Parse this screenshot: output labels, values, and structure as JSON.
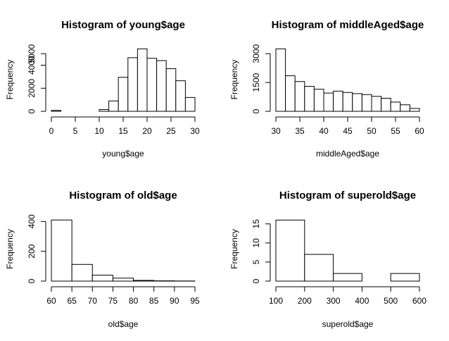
{
  "chart_data": [
    {
      "type": "histogram",
      "title": "Histogram of young$age",
      "xlabel": "young$age",
      "ylabel": "Frequency",
      "xticks": [
        0,
        5,
        10,
        15,
        20,
        25,
        30
      ],
      "yticks": [
        0,
        2000,
        4000,
        5000
      ],
      "xlim": [
        0,
        30
      ],
      "ylim": [
        0,
        5500
      ],
      "bins": [
        {
          "x0": 0,
          "x1": 2,
          "count": 80
        },
        {
          "x0": 2,
          "x1": 4,
          "count": 0
        },
        {
          "x0": 4,
          "x1": 6,
          "count": 0
        },
        {
          "x0": 6,
          "x1": 8,
          "count": 0
        },
        {
          "x0": 8,
          "x1": 10,
          "count": 0
        },
        {
          "x0": 10,
          "x1": 12,
          "count": 150
        },
        {
          "x0": 12,
          "x1": 14,
          "count": 900
        },
        {
          "x0": 14,
          "x1": 16,
          "count": 2950
        },
        {
          "x0": 16,
          "x1": 18,
          "count": 4650
        },
        {
          "x0": 18,
          "x1": 20,
          "count": 5420
        },
        {
          "x0": 20,
          "x1": 22,
          "count": 4600
        },
        {
          "x0": 22,
          "x1": 24,
          "count": 4400
        },
        {
          "x0": 24,
          "x1": 26,
          "count": 3700
        },
        {
          "x0": 26,
          "x1": 28,
          "count": 2650
        },
        {
          "x0": 28,
          "x1": 30,
          "count": 1200
        }
      ]
    },
    {
      "type": "histogram",
      "title": "Histogram of middleAged$age",
      "xlabel": "middleAged$age",
      "ylabel": "Frequency",
      "xticks": [
        30,
        35,
        40,
        45,
        50,
        55,
        60
      ],
      "yticks": [
        0,
        1500,
        3000
      ],
      "xlim": [
        30,
        60
      ],
      "ylim": [
        0,
        3300
      ],
      "bins": [
        {
          "x0": 30,
          "x1": 32,
          "count": 3250
        },
        {
          "x0": 32,
          "x1": 34,
          "count": 1850
        },
        {
          "x0": 34,
          "x1": 36,
          "count": 1550
        },
        {
          "x0": 36,
          "x1": 38,
          "count": 1300
        },
        {
          "x0": 38,
          "x1": 40,
          "count": 1150
        },
        {
          "x0": 40,
          "x1": 42,
          "count": 950
        },
        {
          "x0": 42,
          "x1": 44,
          "count": 1050
        },
        {
          "x0": 44,
          "x1": 46,
          "count": 980
        },
        {
          "x0": 46,
          "x1": 48,
          "count": 920
        },
        {
          "x0": 48,
          "x1": 50,
          "count": 870
        },
        {
          "x0": 50,
          "x1": 52,
          "count": 780
        },
        {
          "x0": 52,
          "x1": 54,
          "count": 680
        },
        {
          "x0": 54,
          "x1": 56,
          "count": 480
        },
        {
          "x0": 56,
          "x1": 58,
          "count": 340
        },
        {
          "x0": 58,
          "x1": 60,
          "count": 150
        }
      ]
    },
    {
      "type": "histogram",
      "title": "Histogram of old$age",
      "xlabel": "old$age",
      "ylabel": "Frequency",
      "xticks": [
        60,
        65,
        70,
        75,
        80,
        85,
        90,
        95
      ],
      "yticks": [
        0,
        200,
        400
      ],
      "xlim": [
        60,
        95
      ],
      "ylim": [
        0,
        430
      ],
      "bins": [
        {
          "x0": 60,
          "x1": 65,
          "count": 410
        },
        {
          "x0": 65,
          "x1": 70,
          "count": 112
        },
        {
          "x0": 70,
          "x1": 75,
          "count": 40
        },
        {
          "x0": 75,
          "x1": 80,
          "count": 20
        },
        {
          "x0": 80,
          "x1": 85,
          "count": 5
        },
        {
          "x0": 85,
          "x1": 90,
          "count": 2
        },
        {
          "x0": 90,
          "x1": 95,
          "count": 1
        }
      ]
    },
    {
      "type": "histogram",
      "title": "Histogram of superold$age",
      "xlabel": "superold$age",
      "ylabel": "Frequency",
      "xticks": [
        100,
        200,
        300,
        400,
        500,
        600
      ],
      "yticks": [
        0,
        5,
        10,
        15
      ],
      "xlim": [
        100,
        600
      ],
      "ylim": [
        0,
        16.8
      ],
      "bins": [
        {
          "x0": 100,
          "x1": 200,
          "count": 16
        },
        {
          "x0": 200,
          "x1": 300,
          "count": 7
        },
        {
          "x0": 300,
          "x1": 400,
          "count": 2
        },
        {
          "x0": 400,
          "x1": 500,
          "count": 0
        },
        {
          "x0": 500,
          "x1": 600,
          "count": 2
        }
      ]
    }
  ]
}
